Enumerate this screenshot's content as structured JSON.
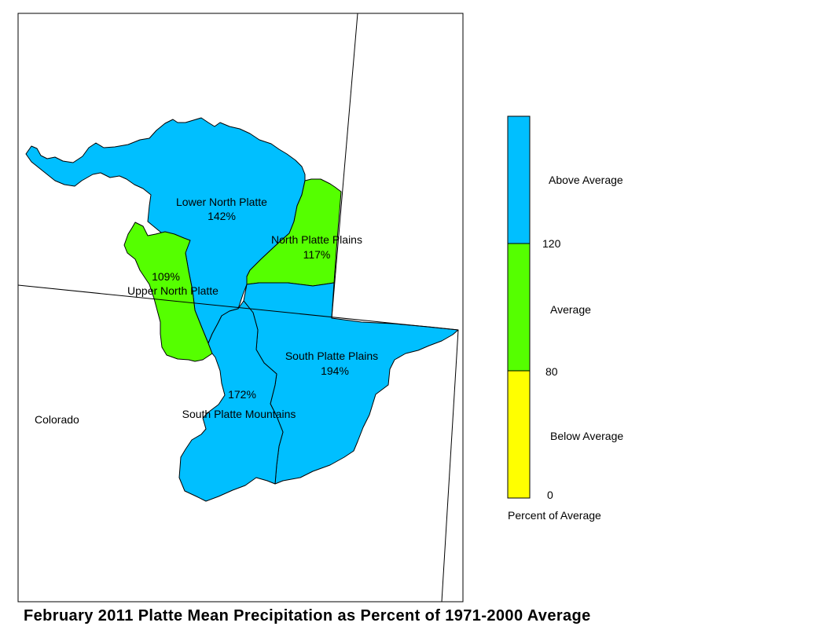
{
  "title": "February 2011 Platte Mean Precipitation as Percent of 1971-2000 Average",
  "state_label": "Colorado",
  "colors": {
    "above": "#00bfff",
    "average": "#55ff00",
    "below": "#ffff00",
    "outline": "#000000"
  },
  "regions": [
    {
      "name": "Lower North Platte",
      "value": "142%",
      "category": "above"
    },
    {
      "name": "North Platte Plains",
      "value": "117%",
      "category": "average"
    },
    {
      "name": "Upper North Platte",
      "value": "109%",
      "category": "average"
    },
    {
      "name": "South Platte Plains",
      "value": "194%",
      "category": "above"
    },
    {
      "name": "South Platte Mountains",
      "value": "172%",
      "category": "above"
    }
  ],
  "legend": {
    "categories": [
      {
        "label": "Above Average",
        "range": [
          120,
          null
        ]
      },
      {
        "label": "Average",
        "range": [
          80,
          120
        ]
      },
      {
        "label": "Below Average",
        "range": [
          0,
          80
        ]
      }
    ],
    "ticks": [
      "120",
      "80",
      "0"
    ],
    "caption": "Percent of Average"
  }
}
